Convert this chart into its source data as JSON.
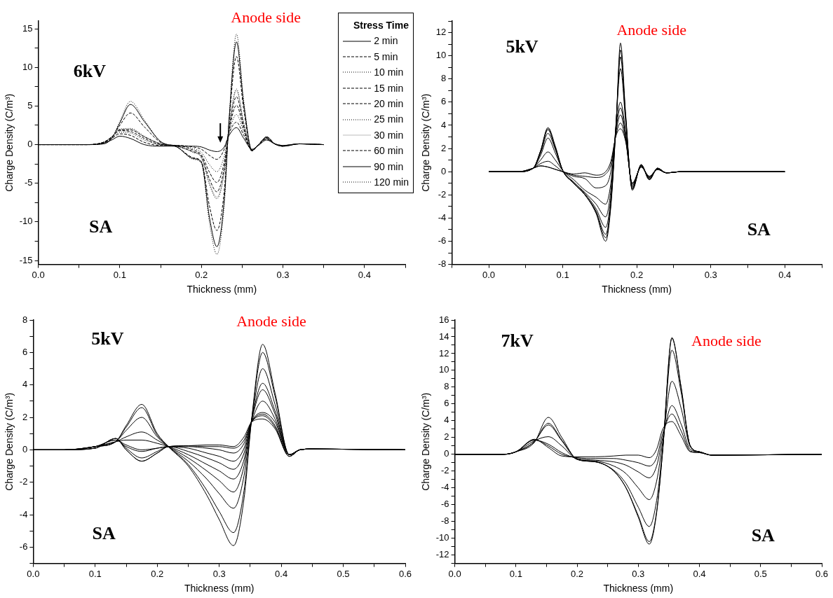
{
  "chart_data": [
    {
      "type": "line",
      "xlabel": "Thickness (mm)",
      "ylabel": "Charge Density (C/m³)",
      "annotations": [
        "6kV",
        "SA",
        "Anode side"
      ],
      "legend": "top right",
      "legend_title": "Stress Time",
      "marker": "none",
      "grid": false,
      "xlim": [
        0,
        0.45
      ],
      "xticks": [
        {
          "value": 0,
          "label": "0.0"
        },
        {
          "value": 0.05,
          "label": null
        },
        0.1,
        {
          "value": 0.15,
          "label": null
        },
        0.2,
        {
          "value": 0.25,
          "label": null
        },
        0.3,
        {
          "value": 0.35,
          "label": null
        },
        0.4,
        {
          "value": 0.45,
          "label": null
        }
      ],
      "ylim": [
        -15.5,
        16
      ],
      "yticks": [
        -15,
        {
          "value": -12.5,
          "label": null
        },
        -10,
        {
          "value": -7.5,
          "label": null
        },
        -5,
        {
          "value": -2.5,
          "label": null
        },
        0,
        {
          "value": 2.5,
          "label": null
        },
        5,
        {
          "value": 7.5,
          "label": null
        },
        10,
        {
          "value": 12.5,
          "label": null
        },
        15
      ],
      "x": [
        0,
        0.06,
        0.08,
        0.09,
        0.1,
        0.113,
        0.13,
        0.15,
        0.17,
        0.19,
        0.2,
        0.21,
        0.219,
        0.228,
        0.234,
        0.243,
        0.252,
        0.262,
        0.27,
        0.28,
        0.29,
        0.3,
        0.32,
        0.35
      ],
      "series": [
        {
          "name": "2 min",
          "color": "#000000",
          "line_style": "solid",
          "values": [
            0,
            0,
            0.2,
            0.6,
            1.1,
            0.8,
            0,
            -0.2,
            -0.2,
            -0.2,
            -0.3,
            -0.7,
            -0.9,
            -0.3,
            1.2,
            2.2,
            0.8,
            -0.6,
            -0.1,
            0.6,
            0.1,
            -0.1,
            0.1,
            0
          ]
        },
        {
          "name": "5 min",
          "color": "#000000",
          "line_style": "dashed",
          "values": [
            0,
            0,
            0.3,
            0.8,
            1.4,
            1.2,
            0.3,
            -0.1,
            -0.1,
            -0.3,
            -0.6,
            -1.4,
            -1.9,
            -0.6,
            1.5,
            2.9,
            1.2,
            -0.7,
            0,
            0.7,
            0.1,
            -0.1,
            0.1,
            0
          ]
        },
        {
          "name": "10 min",
          "color": "#000000",
          "line_style": "dotted",
          "values": [
            0,
            0,
            0.3,
            0.9,
            1.6,
            1.5,
            0.6,
            0,
            -0.1,
            -0.5,
            -1.0,
            -2.6,
            -3.5,
            -1.5,
            1.6,
            3.9,
            1.6,
            -0.7,
            0,
            0.8,
            0.1,
            -0.2,
            0.1,
            0
          ]
        },
        {
          "name": "15 min",
          "color": "#000000",
          "line_style": "dashed",
          "values": [
            0,
            0,
            0.3,
            1.0,
            1.8,
            1.7,
            0.8,
            0,
            -0.1,
            -0.7,
            -1.3,
            -3.6,
            -4.9,
            -2.3,
            1.8,
            5.1,
            2.0,
            -0.8,
            0,
            0.8,
            0.1,
            -0.2,
            0.1,
            0
          ]
        },
        {
          "name": "20 min",
          "color": "#000000",
          "line_style": "dashed",
          "values": [
            0,
            0,
            0.3,
            1.0,
            1.9,
            1.9,
            1.0,
            0.1,
            -0.2,
            -0.9,
            -1.5,
            -4.5,
            -6.1,
            -3.0,
            2.0,
            6.2,
            2.4,
            -0.8,
            0,
            0.9,
            0.1,
            -0.2,
            0.1,
            0
          ]
        },
        {
          "name": "25 min",
          "color": "#000000",
          "line_style": "dotted",
          "values": [
            0,
            0,
            0.3,
            1.0,
            2.0,
            2.1,
            1.1,
            0.1,
            -0.2,
            -1.0,
            -1.7,
            -5.2,
            -7.0,
            -3.6,
            2.2,
            7.2,
            2.8,
            -0.8,
            0,
            0.9,
            0.1,
            -0.2,
            0.1,
            0
          ]
        },
        {
          "name": "30 min",
          "color": "#bbbbbb",
          "line_style": "solid",
          "values": [
            0,
            0,
            0.3,
            1.0,
            2.0,
            2.0,
            1.0,
            0.1,
            -0.2,
            -1.0,
            -1.6,
            -5.0,
            -6.8,
            -3.5,
            2.2,
            7.0,
            2.7,
            -0.8,
            0,
            0.9,
            0.1,
            -0.2,
            0.1,
            0
          ]
        },
        {
          "name": "60 min",
          "color": "#000000",
          "line_style": "dashed",
          "values": [
            0,
            0,
            0.2,
            0.9,
            2.5,
            4.1,
            2.3,
            0.3,
            -0.3,
            -1.7,
            -2.2,
            -8.0,
            -11.1,
            -6.0,
            3.0,
            11.4,
            4.5,
            -0.8,
            0,
            1.0,
            0.1,
            -0.2,
            0.1,
            0
          ]
        },
        {
          "name": "90 min",
          "color": "#000000",
          "line_style": "solid",
          "values": [
            0,
            0,
            0.1,
            0.8,
            2.8,
            5.2,
            3.0,
            0.4,
            -0.3,
            -1.8,
            -2.3,
            -9.5,
            -13.2,
            -7.2,
            3.3,
            13.3,
            5.2,
            -0.7,
            0,
            1.0,
            0.1,
            -0.2,
            0.1,
            0
          ]
        },
        {
          "name": "120 min",
          "color": "#000000",
          "line_style": "dotted",
          "values": [
            0,
            0,
            0.1,
            0.8,
            3.0,
            5.6,
            3.2,
            0.4,
            -0.3,
            -1.9,
            -2.4,
            -10.2,
            -14.2,
            -7.8,
            3.4,
            14.3,
            5.6,
            -0.7,
            0,
            1.0,
            0.1,
            -0.2,
            0.1,
            0
          ]
        }
      ]
    },
    {
      "type": "line",
      "xlabel": "Thickness (mm)",
      "ylabel": "Charge Density (C/m³)",
      "annotations": [
        "5kV",
        "SA",
        "Anode side"
      ],
      "marker": "none",
      "grid": false,
      "xlim": [
        -0.05,
        0.45
      ],
      "xticks": [
        {
          "value": -0.05,
          "label": null
        },
        {
          "value": 0,
          "label": "0.0"
        },
        {
          "value": 0.05,
          "label": null
        },
        0.1,
        {
          "value": 0.15,
          "label": null
        },
        0.2,
        {
          "value": 0.25,
          "label": null
        },
        0.3,
        {
          "value": 0.35,
          "label": null
        },
        0.4,
        {
          "value": 0.45,
          "label": null
        }
      ],
      "ylim": [
        -8,
        13
      ],
      "yticks": [
        -8,
        {
          "value": -7,
          "label": null
        },
        -6,
        {
          "value": -5,
          "label": null
        },
        -4,
        {
          "value": -3,
          "label": null
        },
        -2,
        {
          "value": -1,
          "label": null
        },
        0,
        {
          "value": 1,
          "label": null
        },
        2,
        {
          "value": 3,
          "label": null
        },
        4,
        {
          "value": 5,
          "label": null
        },
        6,
        {
          "value": 7,
          "label": null
        },
        8,
        {
          "value": 9,
          "label": null
        },
        10,
        {
          "value": 11,
          "label": null
        },
        12,
        {
          "value": 13,
          "label": null
        }
      ],
      "x": [
        0,
        0.04,
        0.06,
        0.07,
        0.08,
        0.09,
        0.1,
        0.115,
        0.13,
        0.145,
        0.158,
        0.165,
        0.172,
        0.178,
        0.185,
        0.194,
        0.206,
        0.217,
        0.228,
        0.24,
        0.26,
        0.4
      ],
      "series": [
        {
          "color": "#000000",
          "values": [
            0,
            0,
            0.3,
            1.8,
            3.8,
            2.2,
            0.1,
            -1.0,
            -2.0,
            -3.6,
            -6.0,
            -3.0,
            4.0,
            11.1,
            5.0,
            -1.6,
            0.6,
            -0.7,
            0.3,
            -0.1,
            0,
            0
          ]
        },
        {
          "color": "#000000",
          "values": [
            0,
            0,
            0.3,
            1.8,
            3.7,
            2.1,
            0.1,
            -1.0,
            -2.0,
            -3.5,
            -5.7,
            -2.8,
            4.0,
            10.5,
            4.8,
            -1.5,
            0.6,
            -0.7,
            0.3,
            -0.1,
            0,
            0
          ]
        },
        {
          "color": "#000000",
          "values": [
            0,
            0,
            0.3,
            1.7,
            3.6,
            2.0,
            0.1,
            -1.0,
            -2.0,
            -3.4,
            -5.4,
            -2.6,
            4.1,
            9.9,
            4.6,
            -1.5,
            0.6,
            -0.6,
            0.3,
            -0.1,
            0,
            0
          ]
        },
        {
          "color": "#000000",
          "values": [
            0,
            0,
            0.3,
            1.6,
            3.3,
            1.9,
            0.1,
            -1.0,
            -1.9,
            -3.2,
            -4.8,
            -2.2,
            4.2,
            8.9,
            4.3,
            -1.4,
            0.5,
            -0.6,
            0.3,
            -0.1,
            0,
            0
          ]
        },
        {
          "color": "#000000",
          "values": [
            0,
            0,
            0.3,
            1.4,
            2.9,
            1.6,
            0.1,
            -0.9,
            -1.8,
            -2.8,
            -3.9,
            -1.6,
            3.9,
            6.0,
            3.4,
            -1.3,
            0.5,
            -0.5,
            0.2,
            -0.1,
            0,
            0
          ]
        },
        {
          "color": "#000000",
          "values": [
            0,
            0,
            0.3,
            1.0,
            1.7,
            1.0,
            0.1,
            -0.7,
            -1.6,
            -2.2,
            -2.8,
            -1.0,
            3.6,
            5.5,
            3.1,
            -1.2,
            0.5,
            -0.5,
            0.2,
            -0.1,
            0,
            0
          ]
        },
        {
          "color": "#000000",
          "values": [
            0,
            0,
            0.3,
            0.7,
            0.9,
            0.5,
            0.0,
            -0.4,
            -0.6,
            -1.4,
            -1.2,
            0.0,
            3.4,
            4.9,
            2.9,
            -1.1,
            0.4,
            -0.4,
            0.2,
            -0.1,
            0,
            0
          ]
        },
        {
          "color": "#000000",
          "values": [
            0,
            0,
            0.3,
            0.5,
            0.4,
            0.2,
            0.0,
            -0.3,
            -0.4,
            -0.5,
            -0.2,
            0.6,
            3.2,
            4.2,
            2.7,
            -1.0,
            0.4,
            -0.4,
            0.2,
            -0.1,
            0,
            0
          ]
        },
        {
          "color": "#000000",
          "values": [
            0,
            0,
            0.3,
            0.5,
            0.4,
            0.2,
            0.0,
            -0.2,
            -0.1,
            -0.3,
            0.0,
            0.9,
            3.1,
            3.7,
            2.6,
            -1.0,
            0.4,
            -0.4,
            0.2,
            -0.1,
            0,
            0
          ]
        }
      ]
    },
    {
      "type": "line",
      "xlabel": "Thickness (mm)",
      "ylabel": "Charge Density (C/m³)",
      "annotations": [
        "5kV",
        "SA",
        "Anode side"
      ],
      "marker": "none",
      "grid": false,
      "xlim": [
        0,
        0.6
      ],
      "xticks": [
        {
          "value": 0,
          "label": "0.0"
        },
        {
          "value": 0.05,
          "label": null
        },
        0.1,
        {
          "value": 0.15,
          "label": null
        },
        0.2,
        {
          "value": 0.25,
          "label": null
        },
        0.3,
        {
          "value": 0.35,
          "label": null
        },
        0.4,
        {
          "value": 0.45,
          "label": null
        },
        0.5,
        {
          "value": 0.55,
          "label": null
        },
        0.6
      ],
      "ylim": [
        -7,
        8
      ],
      "yticks": [
        {
          "value": -7,
          "label": null
        },
        -6,
        {
          "value": -5,
          "label": null
        },
        -4,
        {
          "value": -3,
          "label": null
        },
        -2,
        {
          "value": -1,
          "label": null
        },
        0,
        {
          "value": 1,
          "label": null
        },
        2,
        {
          "value": 3,
          "label": null
        },
        4,
        {
          "value": 5,
          "label": null
        },
        6,
        {
          "value": 7,
          "label": null
        },
        8
      ],
      "x": [
        0,
        0.05,
        0.1,
        0.133,
        0.15,
        0.175,
        0.2,
        0.218,
        0.25,
        0.28,
        0.3,
        0.323,
        0.34,
        0.352,
        0.37,
        0.39,
        0.413,
        0.43,
        0.45,
        0.6
      ],
      "series": [
        {
          "color": "#000000",
          "values": [
            0,
            0,
            0.2,
            0.5,
            1.5,
            2.8,
            1.0,
            0.2,
            -1.0,
            -2.8,
            -4.3,
            -5.9,
            -3.0,
            1.8,
            6.5,
            3.5,
            -0.3,
            0,
            0.05,
            0
          ]
        },
        {
          "color": "#000000",
          "values": [
            0,
            0,
            0.2,
            0.5,
            1.4,
            2.6,
            0.9,
            0.2,
            -0.9,
            -2.5,
            -3.8,
            -5.1,
            -2.5,
            1.8,
            6.0,
            3.3,
            -0.3,
            0,
            0.05,
            0
          ]
        },
        {
          "color": "#000000",
          "values": [
            0,
            0,
            0.2,
            0.5,
            1.2,
            2.0,
            0.8,
            0.2,
            -0.7,
            -1.8,
            -2.7,
            -3.6,
            -1.6,
            1.8,
            5.0,
            2.8,
            -0.3,
            0,
            0.05,
            0
          ]
        },
        {
          "color": "#000000",
          "values": [
            0,
            0,
            0.2,
            0.5,
            0.8,
            1.1,
            0.6,
            0.2,
            -0.5,
            -1.3,
            -1.9,
            -2.6,
            -1.0,
            1.8,
            4.1,
            2.4,
            -0.3,
            0,
            0.05,
            0
          ]
        },
        {
          "color": "#000000",
          "values": [
            0,
            0,
            0.2,
            0.5,
            0.6,
            0.6,
            0.4,
            0.2,
            -0.3,
            -0.9,
            -1.3,
            -1.8,
            -0.6,
            1.8,
            3.7,
            2.2,
            -0.3,
            0,
            0.05,
            0
          ]
        },
        {
          "color": "#000000",
          "values": [
            0,
            0,
            0.2,
            0.6,
            0.3,
            0.0,
            0.1,
            0.2,
            -0.1,
            -0.5,
            -0.8,
            -1.2,
            -0.2,
            1.7,
            3.0,
            1.9,
            -0.3,
            0,
            0.05,
            0
          ]
        },
        {
          "color": "#000000",
          "values": [
            0,
            0,
            0.2,
            0.6,
            0.2,
            -0.1,
            0.1,
            0.2,
            0.1,
            -0.2,
            -0.4,
            -0.7,
            0.1,
            1.7,
            2.3,
            1.7,
            -0.3,
            0,
            0.05,
            0
          ]
        },
        {
          "color": "#000000",
          "values": [
            0,
            0,
            0.1,
            0.7,
            0.1,
            -0.5,
            -0.1,
            0.2,
            0.2,
            0.1,
            0.0,
            -0.2,
            0.4,
            1.7,
            2.2,
            1.5,
            -0.4,
            0,
            0.05,
            0
          ]
        },
        {
          "color": "#000000",
          "values": [
            0,
            0,
            0.1,
            0.7,
            0.0,
            -0.7,
            -0.2,
            0.2,
            0.25,
            0.2,
            0.2,
            0.1,
            0.6,
            1.7,
            2.1,
            1.4,
            -0.4,
            0,
            0.05,
            0
          ]
        },
        {
          "color": "#000000",
          "values": [
            0,
            0,
            0.1,
            0.7,
            0.0,
            -0.7,
            -0.2,
            0.2,
            0.25,
            0.3,
            0.3,
            0.2,
            0.8,
            1.7,
            1.9,
            1.3,
            -0.4,
            0,
            0.05,
            0
          ]
        }
      ]
    },
    {
      "type": "line",
      "xlabel": "Thickness (mm)",
      "ylabel": "Charge Density (C/m³)",
      "annotations": [
        "7kV",
        "SA",
        "Anode side"
      ],
      "marker": "none",
      "grid": false,
      "xlim": [
        0,
        0.6
      ],
      "xticks": [
        {
          "value": 0,
          "label": "0.0"
        },
        {
          "value": 0.05,
          "label": null
        },
        0.1,
        {
          "value": 0.15,
          "label": null
        },
        0.2,
        {
          "value": 0.25,
          "label": null
        },
        0.3,
        {
          "value": 0.35,
          "label": null
        },
        0.4,
        {
          "value": 0.45,
          "label": null
        },
        0.5,
        {
          "value": 0.55,
          "label": null
        },
        0.6
      ],
      "ylim": [
        -13,
        16
      ],
      "yticks": [
        {
          "value": -13,
          "label": null
        },
        -12,
        {
          "value": -11,
          "label": null
        },
        -10,
        {
          "value": -9,
          "label": null
        },
        -8,
        {
          "value": -7,
          "label": null
        },
        -6,
        {
          "value": -5,
          "label": null
        },
        -4,
        {
          "value": -3,
          "label": null
        },
        -2,
        {
          "value": -1,
          "label": null
        },
        0,
        {
          "value": 1,
          "label": null
        },
        2,
        {
          "value": 3,
          "label": null
        },
        4,
        {
          "value": 5,
          "label": null
        },
        6,
        {
          "value": 7,
          "label": null
        },
        8,
        {
          "value": 9,
          "label": null
        },
        10,
        {
          "value": 11,
          "label": null
        },
        12,
        {
          "value": 13,
          "label": null
        },
        14,
        {
          "value": 15,
          "label": null
        },
        16
      ],
      "x": [
        0,
        0.08,
        0.1,
        0.13,
        0.153,
        0.175,
        0.2,
        0.23,
        0.26,
        0.28,
        0.3,
        0.318,
        0.33,
        0.34,
        0.355,
        0.37,
        0.385,
        0.4,
        0.42,
        0.6
      ],
      "series": [
        {
          "color": "#000000",
          "values": [
            0,
            0,
            0.3,
            1.4,
            4.4,
            2.0,
            -0.6,
            -0.9,
            -2.0,
            -4.0,
            -7.5,
            -10.7,
            -7.0,
            0.5,
            13.9,
            8.0,
            1.0,
            0.3,
            -0.1,
            0
          ]
        },
        {
          "color": "#000000",
          "values": [
            0,
            0,
            0.3,
            1.5,
            3.7,
            1.7,
            -0.6,
            -0.9,
            -2.0,
            -4.0,
            -7.3,
            -10.4,
            -6.8,
            0.5,
            13.8,
            8.0,
            1.0,
            0.3,
            -0.1,
            0
          ]
        },
        {
          "color": "#000000",
          "values": [
            0,
            0,
            0.3,
            1.5,
            3.5,
            1.6,
            -0.6,
            -0.9,
            -1.9,
            -3.5,
            -6.3,
            -8.6,
            -5.5,
            0.8,
            12.4,
            7.4,
            1.0,
            0.3,
            -0.1,
            0
          ]
        },
        {
          "color": "#000000",
          "values": [
            0,
            0,
            0.3,
            1.6,
            2.1,
            1.0,
            -0.6,
            -0.8,
            -1.4,
            -2.3,
            -4.0,
            -5.4,
            -3.2,
            1.5,
            8.7,
            5.5,
            0.9,
            0.3,
            -0.1,
            0
          ]
        },
        {
          "color": "#000000",
          "values": [
            0,
            0,
            0.3,
            1.7,
            1.2,
            0.2,
            -0.5,
            -0.7,
            -0.9,
            -1.3,
            -2.1,
            -2.8,
            -1.4,
            2.0,
            5.8,
            3.6,
            0.6,
            0.3,
            -0.1,
            0
          ]
        },
        {
          "color": "#000000",
          "values": [
            0,
            0,
            0.3,
            1.7,
            1.0,
            0.0,
            -0.4,
            -0.5,
            -0.5,
            -0.7,
            -1.0,
            -1.4,
            -0.4,
            2.5,
            4.8,
            2.8,
            0.4,
            0.2,
            -0.1,
            0
          ]
        },
        {
          "color": "#000000",
          "values": [
            0,
            0,
            0.3,
            1.8,
            0.8,
            -0.2,
            -0.3,
            -0.3,
            -0.2,
            -0.1,
            -0.1,
            -0.4,
            0.6,
            3.0,
            3.9,
            2.2,
            0.3,
            0.2,
            -0.1,
            0
          ]
        }
      ]
    }
  ]
}
